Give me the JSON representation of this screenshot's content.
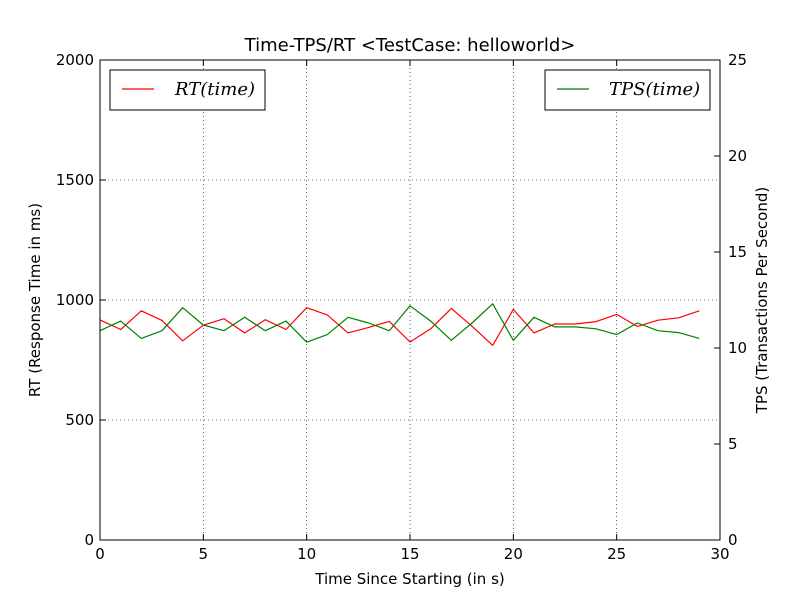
{
  "chart_data": {
    "type": "line",
    "title": "Time-TPS/RT <TestCase: helloworld>",
    "xlabel": "Time Since Starting (in s)",
    "ylabel_left": "RT  (Response Time in ms)",
    "ylabel_right": "TPS  (Transactions Per Second)",
    "xlim": [
      0,
      30
    ],
    "ylim_left": [
      0,
      2000
    ],
    "ylim_right": [
      0,
      25
    ],
    "x_ticks": [
      0,
      5,
      10,
      15,
      20,
      25,
      30
    ],
    "y_ticks_left": [
      0,
      500,
      1000,
      1500,
      2000
    ],
    "y_ticks_right": [
      0,
      5,
      10,
      15,
      20,
      25
    ],
    "grid": true,
    "x": [
      0,
      1,
      2,
      3,
      4,
      5,
      6,
      7,
      8,
      9,
      10,
      11,
      12,
      13,
      14,
      15,
      16,
      17,
      18,
      19,
      20,
      21,
      22,
      23,
      24,
      25,
      26,
      27,
      28,
      29
    ],
    "series": [
      {
        "name": "RT(time)",
        "axis": "left",
        "color": "#ff0000",
        "legend_position": "upper-left",
        "values": [
          917,
          877,
          955,
          915,
          830,
          895,
          922,
          863,
          918,
          877,
          968,
          938,
          863,
          886,
          911,
          825,
          880,
          965,
          891,
          811,
          961,
          863,
          900,
          900,
          910,
          940,
          890,
          916,
          926,
          955
        ]
      },
      {
        "name": "TPS(time)",
        "axis": "right",
        "color": "#008000",
        "legend_position": "upper-right",
        "values": [
          10.9,
          11.4,
          10.5,
          10.9,
          12.1,
          11.2,
          10.9,
          11.6,
          10.9,
          11.4,
          10.3,
          10.7,
          11.6,
          11.3,
          10.9,
          12.2,
          11.4,
          10.4,
          11.3,
          12.3,
          10.4,
          11.6,
          11.1,
          11.1,
          11.0,
          10.7,
          11.3,
          10.9,
          10.8,
          10.5
        ]
      }
    ]
  }
}
